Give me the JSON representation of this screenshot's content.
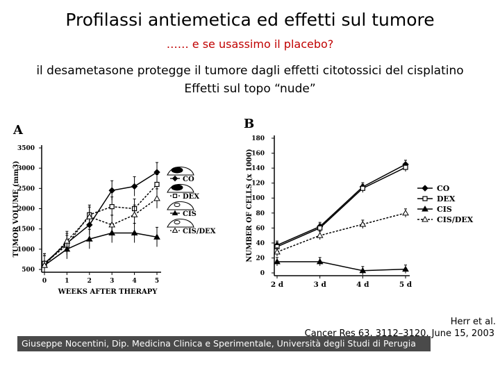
{
  "slide": {
    "title": "Profilassi antiemetica ed effetti sul tumore",
    "subtitle": "…… e se usassimo il placebo?",
    "line1": "il desametasone protegge il tumore dagli effetti citotossici del cisplatino",
    "line2": "Effetti sul topo “nude”",
    "citation_author": "Herr et al.",
    "citation_ref": "Cancer Res 63, 3112–3120, June 15, 2003",
    "footer": "Giuseppe Nocentini, Dip. Medicina Clinica e Sperimentale, Università degli Studi di Perugia"
  },
  "chart_data": [
    {
      "panel": "A",
      "type": "line",
      "xlabel": "WEEKS AFTER THERAPY",
      "ylabel": "TUMOR VOLUME (mm3)",
      "x": [
        0,
        1,
        2,
        3,
        4,
        5
      ],
      "xticks": [
        "0",
        "1",
        "2",
        "3",
        "4",
        "5"
      ],
      "ylim": [
        500,
        3500
      ],
      "yticks": [
        500,
        1000,
        1500,
        2000,
        2500,
        3000,
        3500
      ],
      "legend_placement": "right",
      "series": [
        {
          "name": "CO",
          "marker": "diamond-filled",
          "dash": false,
          "values": [
            650,
            1150,
            1600,
            2450,
            2550,
            2900
          ]
        },
        {
          "name": "DEX",
          "marker": "square-open",
          "dash": true,
          "values": [
            650,
            1100,
            1850,
            2050,
            2000,
            2600
          ]
        },
        {
          "name": "CIS",
          "marker": "triangle-filled",
          "dash": false,
          "values": [
            600,
            1000,
            1250,
            1400,
            1400,
            1300
          ]
        },
        {
          "name": "CIS/DEX",
          "marker": "triangle-open",
          "dash": true,
          "values": [
            600,
            1200,
            1800,
            1600,
            1850,
            2250
          ]
        }
      ]
    },
    {
      "panel": "B",
      "type": "line",
      "xlabel": "",
      "ylabel": "NUMBER OF CELLS (x 1000)",
      "x": [
        "2 d",
        "3 d",
        "4 d",
        "5 d"
      ],
      "xticks": [
        "2 d",
        "3 d",
        "4 d",
        "5 d"
      ],
      "ylim": [
        0,
        180
      ],
      "yticks": [
        0,
        20,
        40,
        60,
        80,
        100,
        120,
        140,
        160,
        180
      ],
      "legend_placement": "right",
      "series": [
        {
          "name": "CO",
          "marker": "diamond-filled",
          "dash": false,
          "values": [
            37,
            62,
            115,
            145
          ]
        },
        {
          "name": "DEX",
          "marker": "square-open",
          "dash": false,
          "values": [
            35,
            60,
            113,
            141
          ]
        },
        {
          "name": "CIS",
          "marker": "triangle-filled",
          "dash": false,
          "values": [
            15,
            15,
            3,
            5
          ]
        },
        {
          "name": "CIS/DEX",
          "marker": "triangle-open",
          "dash": true,
          "values": [
            28,
            50,
            65,
            80
          ]
        }
      ]
    }
  ]
}
